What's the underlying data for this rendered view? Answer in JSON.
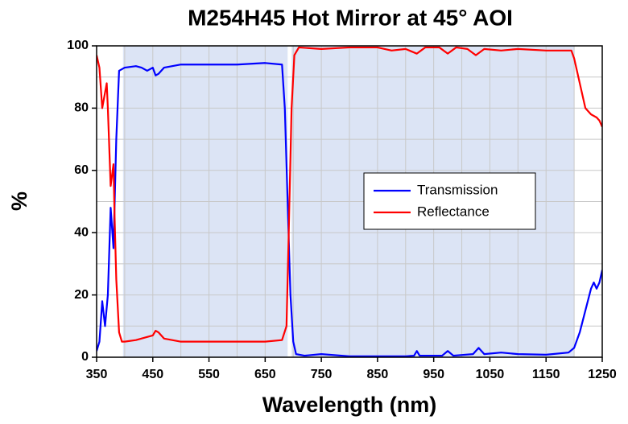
{
  "chart_data": {
    "type": "line",
    "title": "M254H45 Hot Mirror at 45° AOI",
    "xlabel": "Wavelength (nm)",
    "ylabel": "%",
    "xlim": [
      350,
      1250
    ],
    "ylim": [
      0,
      100
    ],
    "xticks": [
      350,
      450,
      550,
      650,
      750,
      850,
      950,
      1050,
      1150,
      1250
    ],
    "xgrid": [
      400,
      450,
      500,
      550,
      600,
      650,
      700,
      750,
      800,
      850,
      900,
      950,
      1000,
      1050,
      1100,
      1150,
      1200
    ],
    "yticks": [
      0,
      20,
      40,
      60,
      80,
      100
    ],
    "ygrid": [
      10,
      20,
      30,
      40,
      50,
      60,
      70,
      80,
      90
    ],
    "grid": true,
    "shaded_ranges": [
      [
        397,
        690
      ],
      [
        697,
        1200
      ]
    ],
    "shade_color": "#dce4f5",
    "legend": "center-right",
    "series": [
      {
        "name": "Transmission",
        "color": "#0000ff",
        "x": [
          350,
          355,
          360,
          365,
          370,
          375,
          380,
          385,
          390,
          400,
          420,
          430,
          440,
          450,
          455,
          460,
          470,
          500,
          550,
          600,
          650,
          680,
          685,
          690,
          695,
          700,
          705,
          720,
          750,
          800,
          900,
          915,
          920,
          925,
          965,
          975,
          985,
          1020,
          1030,
          1040,
          1070,
          1100,
          1150,
          1190,
          1200,
          1210,
          1220,
          1230,
          1235,
          1240,
          1245,
          1250
        ],
        "values": [
          2,
          5,
          18,
          10,
          20,
          48,
          35,
          70,
          92,
          93,
          93.5,
          93,
          92,
          93,
          90.5,
          91,
          93,
          94,
          94,
          94,
          94.5,
          94,
          80,
          50,
          20,
          5,
          1,
          0.5,
          1,
          0.3,
          0.3,
          0.5,
          2,
          0.5,
          0.5,
          2,
          0.5,
          1,
          3,
          1,
          1.5,
          1,
          0.8,
          1.5,
          3,
          8,
          15,
          22,
          24,
          22,
          24,
          28
        ]
      },
      {
        "name": "Reflectance",
        "color": "#ff0000",
        "x": [
          350,
          355,
          360,
          365,
          368,
          370,
          375,
          380,
          382,
          385,
          390,
          395,
          400,
          420,
          440,
          450,
          455,
          460,
          470,
          500,
          550,
          600,
          650,
          680,
          688,
          692,
          697,
          702,
          710,
          750,
          800,
          850,
          875,
          900,
          920,
          935,
          960,
          975,
          990,
          1010,
          1025,
          1040,
          1070,
          1100,
          1150,
          1195,
          1200,
          1210,
          1220,
          1230,
          1240,
          1245,
          1250
        ],
        "values": [
          97,
          93,
          80,
          85,
          88,
          80,
          55,
          62,
          45,
          25,
          8,
          5,
          5,
          5.5,
          6.5,
          7,
          8.5,
          8,
          6,
          5,
          5,
          5,
          5,
          5.5,
          10,
          40,
          80,
          97,
          99.5,
          99,
          99.5,
          99.5,
          98.5,
          99,
          97.5,
          99.5,
          99.5,
          97.5,
          99.5,
          99,
          97,
          99,
          98.5,
          99,
          98.5,
          98.5,
          96,
          88,
          80,
          78,
          77,
          76,
          74
        ]
      }
    ]
  }
}
